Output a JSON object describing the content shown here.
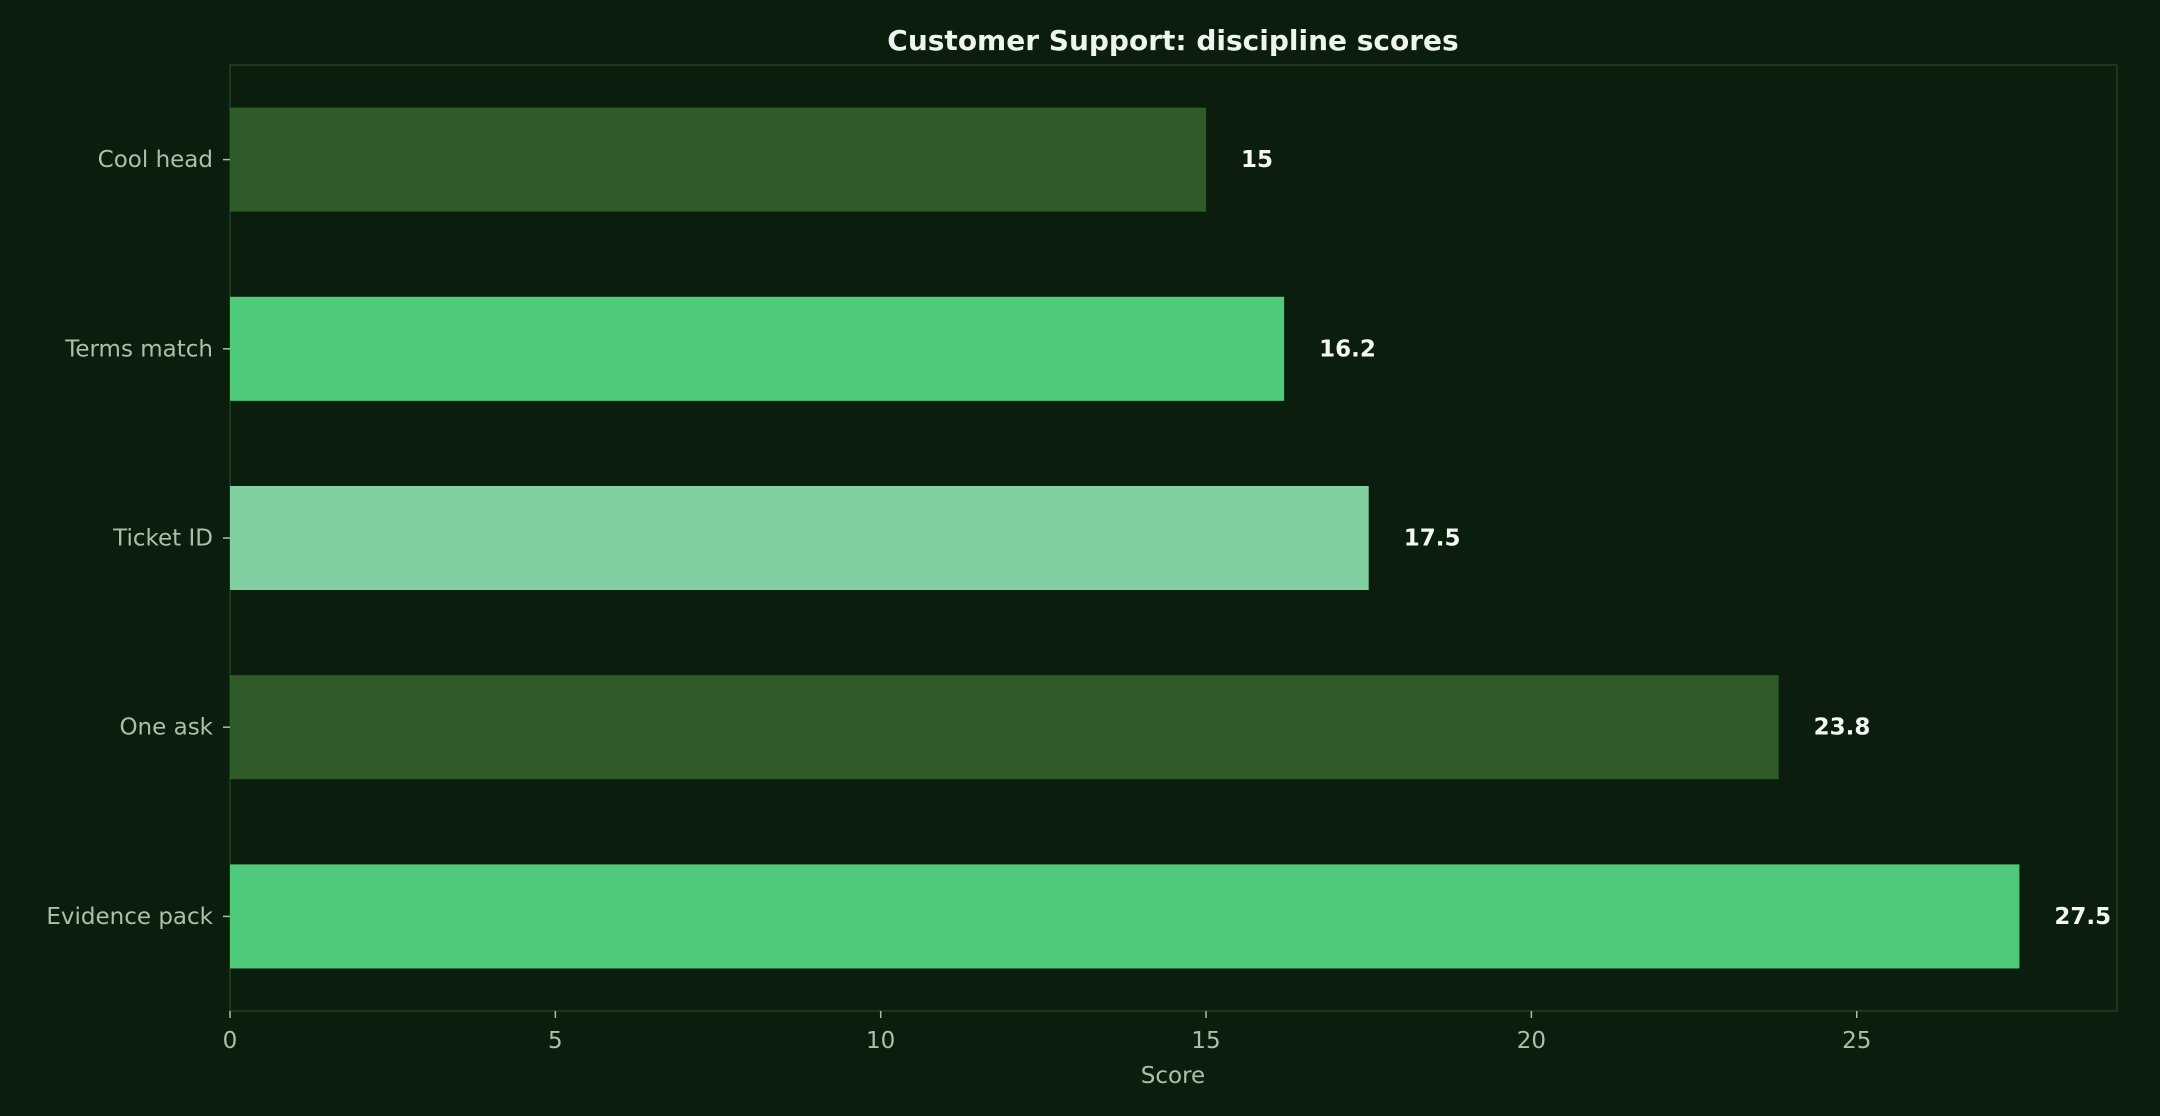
{
  "chart_data": {
    "type": "bar",
    "orientation": "horizontal",
    "title": "Customer Support: discipline scores",
    "xlabel": "Score",
    "ylabel": "",
    "xlim": [
      0,
      29
    ],
    "xticks": [
      0,
      5,
      10,
      15,
      20,
      25
    ],
    "grid": false,
    "categories": [
      "Cool head",
      "Terms match",
      "Ticket ID",
      "One ask",
      "Evidence pack"
    ],
    "values": [
      15,
      16.2,
      17.5,
      23.8,
      27.5
    ],
    "value_labels": [
      "15",
      "16.2",
      "17.5",
      "23.8",
      "27.5"
    ],
    "bar_colors": [
      "#2e5b28",
      "#4fca7a",
      "#7fcfa0",
      "#2e5b28",
      "#4fca7a"
    ]
  }
}
